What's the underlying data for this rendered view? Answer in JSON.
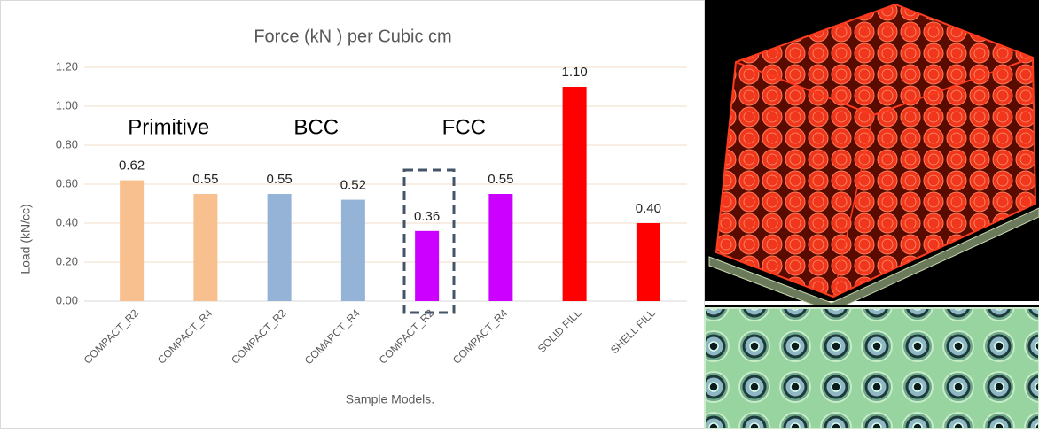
{
  "chart_data": {
    "type": "bar",
    "title": "Force (kN ) per Cubic cm",
    "x_label": "Sample Models.",
    "y_label": "Load (kN/cc)",
    "categories": [
      "COMPACT_R2",
      "COMPACT_R4",
      "COMPACT_R2",
      "COMAPCT_R4",
      "COMPACT_R2",
      "COMPACT_R4",
      "SOLID FILL",
      "SHELL FILL"
    ],
    "values": [
      0.62,
      0.55,
      0.55,
      0.52,
      0.36,
      0.55,
      1.1,
      0.4
    ],
    "value_labels": [
      "0.62",
      "0.55",
      "0.55",
      "0.52",
      "0.36",
      "0.55",
      "1.10",
      "0.40"
    ],
    "colors": [
      "#f8c08e",
      "#f8c08e",
      "#95b3d7",
      "#95b3d7",
      "#cc00ff",
      "#cc00ff",
      "#ff0000",
      "#ff0000"
    ],
    "annotations": [
      "Primitive",
      "BCC",
      "FCC"
    ],
    "ylim": [
      0,
      1.2
    ],
    "yticks": [
      {
        "value": 0,
        "label": "0.00"
      },
      {
        "value": 0.2,
        "label": "0.20"
      },
      {
        "value": 0.4,
        "label": "0.40"
      },
      {
        "value": 0.6,
        "label": "0.60"
      },
      {
        "value": 0.8,
        "label": "0.80"
      },
      {
        "value": 1,
        "label": "1.00"
      },
      {
        "value": 1.2,
        "label": "1.20"
      }
    ],
    "grid": true
  }
}
